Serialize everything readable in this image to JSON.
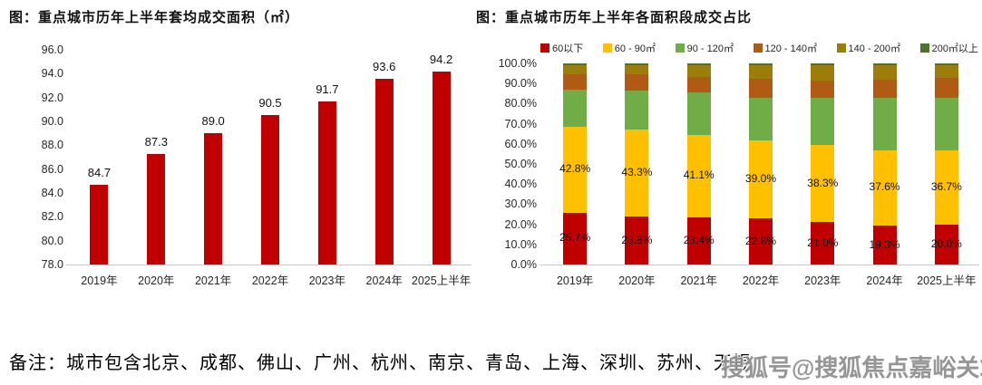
{
  "note": "备注：城市包含北京、成都、佛山、广州、杭州、南京、青岛、上海、深圳、苏州、无锡",
  "watermark": "搜狐号@搜狐焦点嘉峪关站",
  "colors": {
    "bar_red": "#c00000",
    "yellow": "#ffc000",
    "green": "#70ad47",
    "orange_brown": "#af5b14",
    "dark_yellow": "#9c7d0b",
    "dark_green": "#4e732c",
    "axis_line": "#c9c9c9"
  },
  "chart_data": [
    {
      "type": "bar",
      "title": "图：重点城市历年上半年套均成交面积（㎡）",
      "categories": [
        "2019年",
        "2020年",
        "2021年",
        "2022年",
        "2023年",
        "2024年",
        "2025上半年"
      ],
      "values": [
        84.7,
        87.3,
        89.0,
        90.5,
        91.7,
        93.6,
        94.2
      ],
      "xlabel": "",
      "ylabel": "",
      "ylim": [
        78.0,
        96.0
      ],
      "ytick_step": 2.0,
      "grid": false,
      "data_labels": true,
      "bar_color": "#c00000"
    },
    {
      "type": "stacked-bar-100",
      "title": "图：重点城市历年上半年各面积段成交占比",
      "categories": [
        "2019年",
        "2020年",
        "2021年",
        "2022年",
        "2023年",
        "2024年",
        "2025上半年"
      ],
      "series": [
        {
          "name": "60以下",
          "color": "#c00000",
          "values": [
            25.7,
            23.8,
            23.4,
            22.8,
            21.0,
            19.3,
            20.0
          ],
          "show_labels": true
        },
        {
          "name": "60 - 90㎡",
          "color": "#ffc000",
          "values": [
            42.8,
            43.3,
            41.1,
            39.0,
            38.3,
            37.6,
            36.7
          ],
          "show_labels": true
        },
        {
          "name": "90 - 120㎡",
          "color": "#70ad47",
          "values": [
            18.3,
            19.6,
            21.2,
            21.2,
            23.7,
            26.1,
            26.3
          ],
          "show_labels": false
        },
        {
          "name": "120 - 140㎡",
          "color": "#af5b14",
          "values": [
            7.6,
            7.7,
            7.6,
            9.5,
            8.3,
            9.0,
            10.0
          ],
          "show_labels": false
        },
        {
          "name": "140 - 200㎡",
          "color": "#9c7d0b",
          "values": [
            4.8,
            4.8,
            5.7,
            6.5,
            7.7,
            7.0,
            6.0
          ],
          "show_labels": false
        },
        {
          "name": "200㎡以上",
          "color": "#4e732c",
          "values": [
            0.8,
            0.8,
            1.0,
            1.0,
            1.0,
            1.0,
            1.0
          ],
          "show_labels": false
        }
      ],
      "ylim": [
        0,
        100
      ],
      "ytick_step": 10,
      "grid": false,
      "legend_position": "top"
    }
  ]
}
